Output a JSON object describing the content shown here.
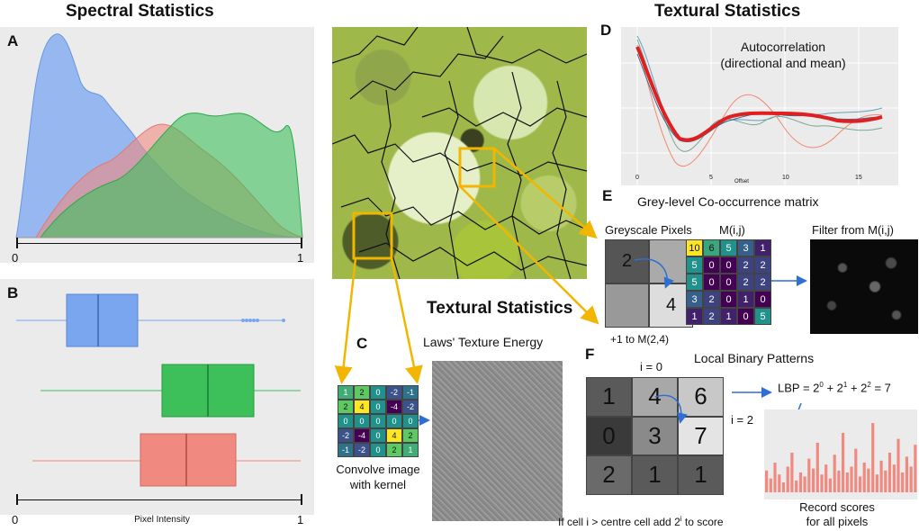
{
  "titles": {
    "spectral": "Spectral Statistics",
    "textural_top": "Textural Statistics",
    "textural_mid": "Textural Statistics"
  },
  "panel_labels": {
    "A": "A",
    "B": "B",
    "C": "C",
    "D": "D",
    "E": "E",
    "F": "F"
  },
  "panel_a": {
    "tick_min": "0",
    "tick_max": "1"
  },
  "panel_b": {
    "tick_min": "0",
    "tick_max": "1",
    "xlabel": "Pixel Intensity"
  },
  "panel_d": {
    "title_line1": "Autocorrelation",
    "title_line2": "(directional and mean)",
    "x_ticks": [
      "0",
      "5",
      "10",
      "15"
    ],
    "x_axis_label": "Offset"
  },
  "panel_e": {
    "title": "Grey-level Co-occurrence matrix",
    "pixels_label": "Greyscale Pixels",
    "pixel_value_a": "2",
    "pixel_value_b": "4",
    "increment_note": "+1 to M(2,4)",
    "matrix_label": "M(i,j)",
    "filter_label": "Filter from M(i,j)",
    "matrix": [
      [
        10,
        6,
        5,
        3,
        1
      ],
      [
        5,
        0,
        0,
        2,
        2
      ],
      [
        5,
        0,
        0,
        2,
        2
      ],
      [
        3,
        2,
        0,
        1,
        0
      ],
      [
        1,
        2,
        1,
        0,
        5
      ]
    ]
  },
  "panel_c": {
    "title": "Laws' Texture Energy",
    "kernel": [
      [
        1,
        2,
        0,
        -2,
        -1
      ],
      [
        2,
        4,
        0,
        -4,
        -2
      ],
      [
        0,
        0,
        0,
        0,
        0
      ],
      [
        -2,
        -4,
        0,
        4,
        2
      ],
      [
        -1,
        -2,
        0,
        2,
        1
      ]
    ],
    "caption_line1": "Convolve image",
    "caption_line2": "with kernel"
  },
  "panel_f": {
    "title": "Local Binary Patterns",
    "i0": "i = 0",
    "i2": "i = 2",
    "grid": [
      [
        "1",
        "4",
        "6"
      ],
      [
        "0",
        "3",
        "7"
      ],
      [
        "2",
        "1",
        "1"
      ]
    ],
    "formula_prefix": "LBP = 2",
    "formula_e0": "0",
    "formula_p1": " + 2",
    "formula_e1": "1",
    "formula_p2": " + 2",
    "formula_e2": "2",
    "formula_end": " = 7",
    "rule_prefix": "If cell i > centre cell add 2",
    "rule_exp": "i",
    "rule_suffix": " to score",
    "record_line1": "Record scores",
    "record_line2": "for all pixels"
  },
  "colors": {
    "blue": "#7aa6f0",
    "green": "#3dbf5a",
    "red": "#f08a80",
    "yellow": "#f2b600",
    "arrow": "#2f6fd1",
    "panel_bg": "#ebebeb"
  }
}
